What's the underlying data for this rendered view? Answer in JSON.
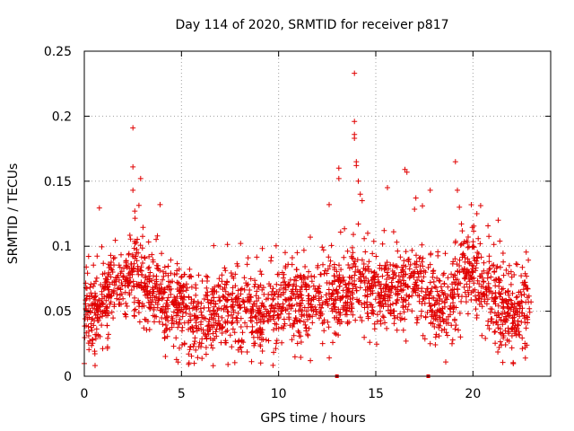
{
  "chart_data": {
    "type": "scatter",
    "title": "Day 114 of 2020, SRMTID for receiver p817",
    "xlabel": "GPS time / hours",
    "ylabel": "SRMTID / TECUs",
    "xlim": [
      0,
      24
    ],
    "ylim": [
      0,
      0.25
    ],
    "xticks": [
      0,
      5,
      10,
      15,
      20
    ],
    "yticks": [
      0,
      0.05,
      0.1,
      0.15,
      0.2,
      0.25
    ],
    "xtick_labels": [
      "0",
      "5",
      "10",
      "15",
      "20"
    ],
    "ytick_labels": [
      "0",
      "0.05",
      "0.1",
      "0.15",
      "0.2",
      "0.25"
    ],
    "grid": true,
    "marker": "plus",
    "color": "#e00000",
    "x_range": [
      0,
      23
    ],
    "series": [
      {
        "name": "SRMTID",
        "trend": [
          [
            0.0,
            0.05
          ],
          [
            0.5,
            0.048
          ],
          [
            1.0,
            0.06
          ],
          [
            1.5,
            0.07
          ],
          [
            2.0,
            0.065
          ],
          [
            2.5,
            0.082
          ],
          [
            3.0,
            0.07
          ],
          [
            3.5,
            0.065
          ],
          [
            4.0,
            0.06
          ],
          [
            4.5,
            0.055
          ],
          [
            5.0,
            0.058
          ],
          [
            5.5,
            0.045
          ],
          [
            6.0,
            0.032
          ],
          [
            6.5,
            0.045
          ],
          [
            7.0,
            0.055
          ],
          [
            7.5,
            0.05
          ],
          [
            8.0,
            0.048
          ],
          [
            8.5,
            0.05
          ],
          [
            9.0,
            0.046
          ],
          [
            9.5,
            0.045
          ],
          [
            10.0,
            0.055
          ],
          [
            10.5,
            0.058
          ],
          [
            11.0,
            0.06
          ],
          [
            11.5,
            0.058
          ],
          [
            12.0,
            0.062
          ],
          [
            12.5,
            0.055
          ],
          [
            13.0,
            0.06
          ],
          [
            13.5,
            0.062
          ],
          [
            14.0,
            0.075
          ],
          [
            14.5,
            0.068
          ],
          [
            15.0,
            0.065
          ],
          [
            15.5,
            0.065
          ],
          [
            16.0,
            0.07
          ],
          [
            16.5,
            0.068
          ],
          [
            17.0,
            0.075
          ],
          [
            17.5,
            0.068
          ],
          [
            18.0,
            0.055
          ],
          [
            18.5,
            0.05
          ],
          [
            19.0,
            0.06
          ],
          [
            19.5,
            0.085
          ],
          [
            20.0,
            0.08
          ],
          [
            20.5,
            0.07
          ],
          [
            21.0,
            0.058
          ],
          [
            21.5,
            0.05
          ],
          [
            22.0,
            0.045
          ],
          [
            22.5,
            0.05
          ],
          [
            23.0,
            0.055
          ]
        ],
        "spread": 0.018,
        "point_count": 2300,
        "outliers": [
          {
            "x": 2.5,
            "y": 0.191
          },
          {
            "x": 2.5,
            "y": 0.161
          },
          {
            "x": 2.9,
            "y": 0.152
          },
          {
            "x": 2.5,
            "y": 0.143
          },
          {
            "x": 2.6,
            "y": 0.127
          },
          {
            "x": 3.9,
            "y": 0.132
          },
          {
            "x": 13.1,
            "y": 0.16
          },
          {
            "x": 13.1,
            "y": 0.152
          },
          {
            "x": 13.9,
            "y": 0.233
          },
          {
            "x": 13.9,
            "y": 0.196
          },
          {
            "x": 13.9,
            "y": 0.186
          },
          {
            "x": 13.9,
            "y": 0.183
          },
          {
            "x": 14.0,
            "y": 0.165
          },
          {
            "x": 14.0,
            "y": 0.162
          },
          {
            "x": 14.1,
            "y": 0.15
          },
          {
            "x": 14.2,
            "y": 0.14
          },
          {
            "x": 14.3,
            "y": 0.135
          },
          {
            "x": 16.5,
            "y": 0.159
          },
          {
            "x": 16.6,
            "y": 0.157
          },
          {
            "x": 17.8,
            "y": 0.143
          },
          {
            "x": 19.1,
            "y": 0.165
          },
          {
            "x": 19.2,
            "y": 0.143
          },
          {
            "x": 19.3,
            "y": 0.13
          },
          {
            "x": 15.6,
            "y": 0.145
          },
          {
            "x": 12.6,
            "y": 0.132
          },
          {
            "x": 20.2,
            "y": 0.125
          },
          {
            "x": 21.3,
            "y": 0.12
          },
          {
            "x": 17.4,
            "y": 0.131
          },
          {
            "x": 18.6,
            "y": 0.011
          },
          {
            "x": 22.7,
            "y": 0.014
          }
        ],
        "zero_markers": [
          13.0,
          17.7
        ]
      }
    ]
  }
}
